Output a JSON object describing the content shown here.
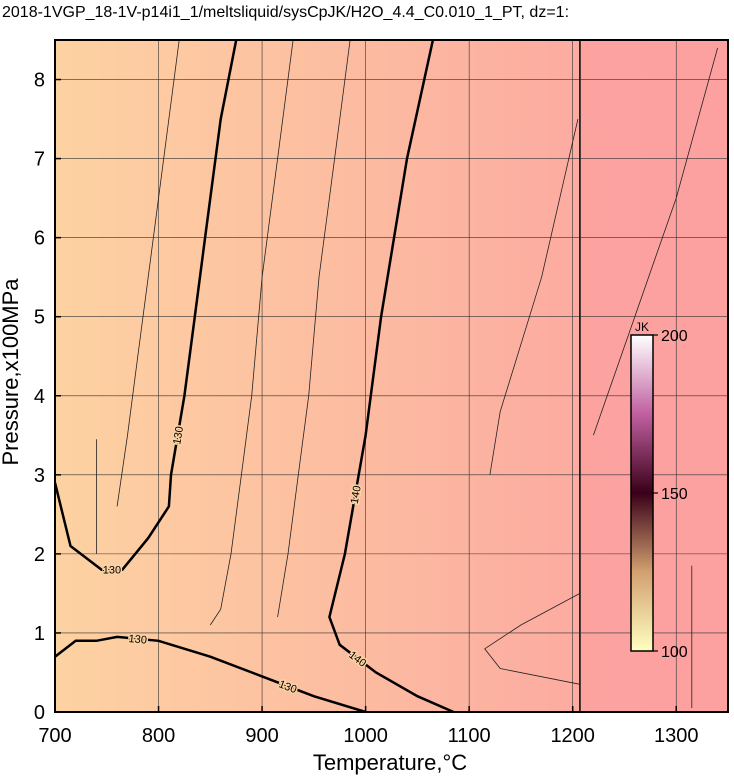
{
  "chart_data": {
    "type": "contour",
    "title": "2018-1VGP_18-1V-p14i1_1/meltsliquid/sysCpJK/H2O_4.4_C0.010_1_PT, dz=1:",
    "x_label": "Temperature,°C",
    "y_label": "Pressure,x100MPa",
    "xlim": [
      700,
      1350
    ],
    "ylim": [
      0,
      8.5
    ],
    "xticks": [
      700,
      800,
      900,
      1000,
      1100,
      1200,
      1300
    ],
    "yticks": [
      0,
      1,
      2,
      3,
      4,
      5,
      6,
      7,
      8
    ],
    "grid": true,
    "background_colors": [
      "#fdd2a2",
      "#fca0a0"
    ],
    "series": [
      {
        "name": "130",
        "color": "#000000",
        "x": [
          875,
          860,
          845,
          835,
          825,
          812,
          810,
          790,
          765,
          745,
          715,
          700
        ],
        "y": [
          8.5,
          7.5,
          6.0,
          5.0,
          4.0,
          3.0,
          2.6,
          2.2,
          1.8,
          1.8,
          2.1,
          2.9
        ]
      },
      {
        "name": "130",
        "color": "#000000",
        "x": [
          700,
          720,
          740,
          760,
          800,
          850,
          900,
          950,
          1000
        ],
        "y": [
          0.7,
          0.9,
          0.9,
          0.95,
          0.9,
          0.7,
          0.45,
          0.2,
          0
        ]
      },
      {
        "name": "140",
        "color": "#000000",
        "x": [
          1065,
          1040,
          1015,
          1000,
          980,
          965,
          975,
          1010,
          1050,
          1085
        ],
        "y": [
          8.5,
          7.0,
          5.0,
          3.5,
          2.0,
          1.2,
          0.85,
          0.5,
          0.2,
          0
        ]
      }
    ],
    "minor_contours": [
      {
        "x": [
          740,
          740
        ],
        "y": [
          2.0,
          3.45
        ]
      },
      {
        "x": [
          1315,
          1315
        ],
        "y": [
          0.05,
          1.85
        ]
      },
      {
        "x": [
          820,
          805,
          790,
          780,
          770,
          760
        ],
        "y": [
          8.5,
          7.0,
          5.5,
          4.5,
          3.5,
          2.6
        ]
      },
      {
        "x": [
          930,
          915,
          900,
          890,
          880,
          870,
          860,
          850
        ],
        "y": [
          8.5,
          7.0,
          5.5,
          4.0,
          3.0,
          2.0,
          1.3,
          1.1
        ]
      },
      {
        "x": [
          985,
          970,
          955,
          945,
          935,
          925,
          915
        ],
        "y": [
          8.5,
          7.0,
          5.5,
          4.0,
          3.0,
          2.0,
          1.2
        ]
      },
      {
        "x": [
          1205,
          1170,
          1130,
          1120
        ],
        "y": [
          7.5,
          5.5,
          3.8,
          3.0
        ]
      },
      {
        "x": [
          1207,
          1150,
          1115,
          1130,
          1207
        ],
        "y": [
          1.5,
          1.1,
          0.8,
          0.55,
          0.35
        ]
      },
      {
        "x": [
          1340,
          1300,
          1260,
          1220
        ],
        "y": [
          8.4,
          6.5,
          5.0,
          3.5
        ]
      }
    ],
    "boundary": {
      "x": [
        1207,
        1207
      ],
      "y": [
        0,
        8.5
      ]
    },
    "colorbar": {
      "label": "JK",
      "lim": [
        100,
        200
      ],
      "ticks": [
        100,
        150,
        200
      ],
      "colors": [
        "#ffffc0",
        "#d2a070",
        "#3a0018",
        "#c060a0",
        "#ffffff"
      ]
    }
  }
}
